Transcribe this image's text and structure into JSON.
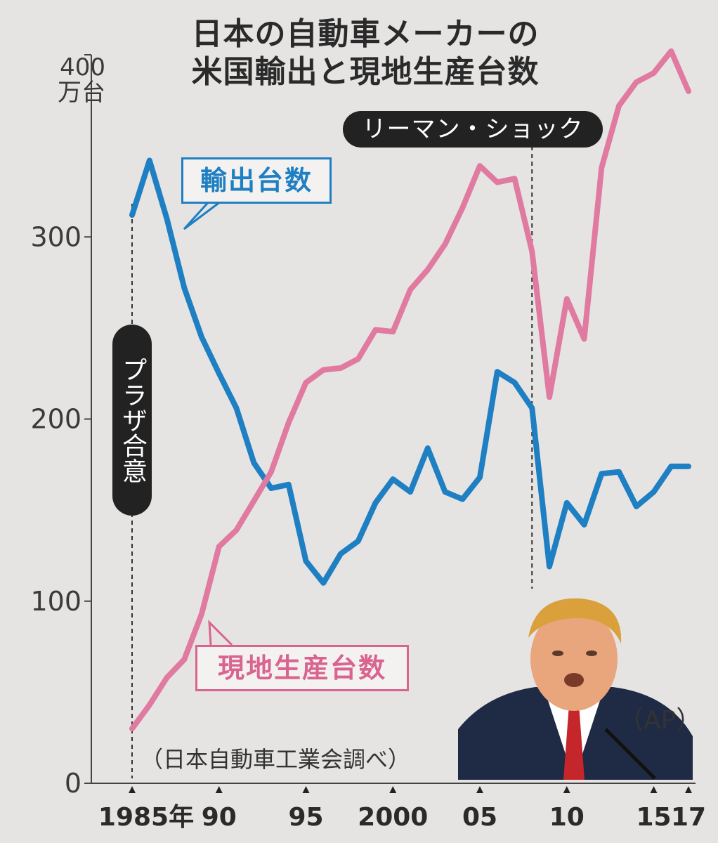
{
  "title_line1": "日本の自動車メーカーの",
  "title_line2": "米国輸出と現地生産台数",
  "unit_value": "400",
  "unit_text": "万台",
  "annotations": {
    "lehman": "リーマン・ショック",
    "plaza": "プラザ合意",
    "source": "（日本自動車工業会調べ）",
    "credit": "（AP）"
  },
  "legend": {
    "export": "輸出台数",
    "local": "現地生産台数"
  },
  "colors": {
    "export": "#1e7fc2",
    "local": "#e07aa0",
    "axis": "#444444",
    "background": "#e6e4e3"
  },
  "chart_data": {
    "type": "line",
    "title": "日本の自動車メーカーの米国輸出と現地生産台数",
    "ylabel": "万台",
    "ylim": [
      0,
      400
    ],
    "yticks": [
      0,
      100,
      200,
      300,
      400
    ],
    "xlim": [
      1985,
      2017
    ],
    "xticks": [
      {
        "year": 1985,
        "label": "1985年"
      },
      {
        "year": 1990,
        "label": "90"
      },
      {
        "year": 1995,
        "label": "95"
      },
      {
        "year": 2000,
        "label": "2000"
      },
      {
        "year": 2005,
        "label": "05"
      },
      {
        "year": 2010,
        "label": "10"
      },
      {
        "year": 2015,
        "label": "15"
      },
      {
        "year": 2017,
        "label": "17"
      }
    ],
    "x": [
      1985,
      1986,
      1987,
      1988,
      1989,
      1990,
      1991,
      1992,
      1993,
      1994,
      1995,
      1996,
      1997,
      1998,
      1999,
      2000,
      2001,
      2002,
      2003,
      2004,
      2005,
      2006,
      2007,
      2008,
      2009,
      2010,
      2011,
      2012,
      2013,
      2014,
      2015,
      2016,
      2017
    ],
    "series": [
      {
        "name": "輸出台数",
        "key": "export",
        "values": [
          312,
          342,
          310,
          272,
          245,
          225,
          206,
          176,
          162,
          164,
          122,
          110,
          126,
          133,
          154,
          167,
          160,
          184,
          160,
          156,
          168,
          226,
          220,
          206,
          119,
          154,
          142,
          170,
          171,
          152,
          160,
          174,
          174
        ]
      },
      {
        "name": "現地生産台数",
        "key": "local",
        "values": [
          30,
          43,
          58,
          68,
          93,
          130,
          139,
          155,
          171,
          198,
          220,
          227,
          228,
          233,
          249,
          248,
          271,
          282,
          296,
          316,
          339,
          330,
          332,
          292,
          212,
          266,
          244,
          338,
          372,
          385,
          390,
          402,
          380
        ]
      }
    ],
    "vlines": [
      {
        "year": 1985,
        "label": "プラザ合意"
      },
      {
        "year": 2008,
        "label": "リーマン・ショック"
      }
    ],
    "grid": false
  }
}
